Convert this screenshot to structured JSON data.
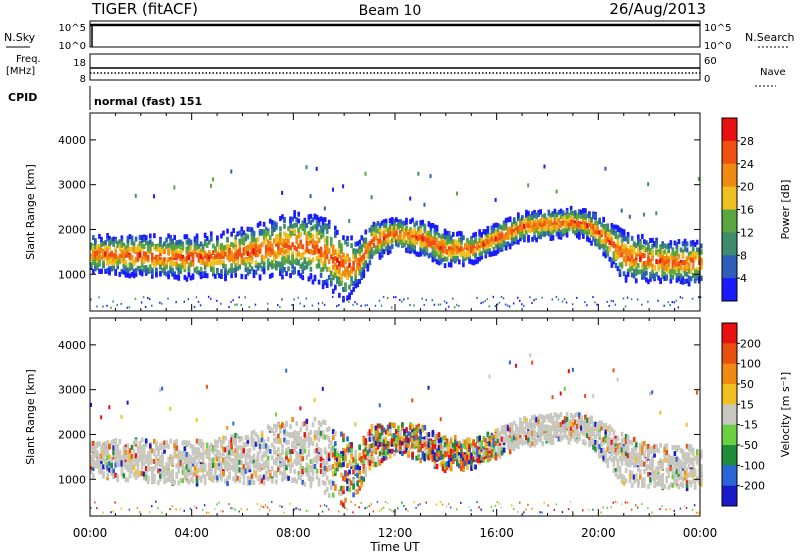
{
  "header": {
    "title": "TIGER (fitACF)",
    "beam": "Beam 10",
    "date": "26/Aug/2013"
  },
  "top_panels": {
    "nsky_label": "N.Sky",
    "nsky_ticks": [
      "10^5",
      "10^0"
    ],
    "nsearch_label": "N.Search",
    "nsearch_ticks": [
      "10^5",
      "10^0"
    ],
    "freq_label": "Freq.",
    "freq_unit": "[MHz]",
    "freq_ticks": [
      "18",
      "8"
    ],
    "nave_label": "Nave",
    "nave_ticks": [
      "60",
      "0"
    ],
    "cpid_label": "CPID",
    "cpid_value": "normal (fast) 151"
  },
  "colors": {
    "power": [
      "#1a1aff",
      "#2e5fb8",
      "#3e8c6b",
      "#5aa640",
      "#f0c020",
      "#f08a10",
      "#f05010",
      "#e81010"
    ],
    "velocity": [
      "#1a1ac8",
      "#2a66d8",
      "#1f8c3a",
      "#6ad040",
      "#c8c8c0",
      "#f0c020",
      "#f08a10",
      "#e85010",
      "#e81010"
    ]
  },
  "chart_data": [
    {
      "type": "heatmap",
      "title": "",
      "xlabel": "Time UT",
      "ylabel": "Slant Range [km]",
      "x_ticks": [
        "00:00",
        "04:00",
        "08:00",
        "12:00",
        "16:00",
        "20:00",
        "00:00"
      ],
      "y_ticks": [
        "1000",
        "2000",
        "3000",
        "4000"
      ],
      "xlim": [
        0,
        24
      ],
      "ylim": [
        180,
        4600
      ],
      "colorbar": {
        "label": "Power [dB]",
        "ticks": [
          "4",
          "8",
          "12",
          "16",
          "20",
          "24",
          "28"
        ],
        "range": [
          0,
          32
        ]
      },
      "profile": {
        "hours": [
          0,
          2,
          4,
          6,
          8,
          9,
          10,
          10.5,
          11,
          12,
          13,
          14,
          15,
          16,
          17,
          18,
          19,
          19.5,
          20,
          21,
          22,
          23,
          24
        ],
        "center_km": [
          1450,
          1400,
          1350,
          1450,
          1650,
          1550,
          1150,
          1200,
          1700,
          1900,
          1800,
          1550,
          1550,
          1800,
          2050,
          2100,
          2150,
          2100,
          1900,
          1400,
          1300,
          1250,
          1250
        ],
        "width_km": [
          250,
          300,
          300,
          350,
          450,
          500,
          500,
          300,
          300,
          200,
          250,
          250,
          200,
          200,
          200,
          200,
          200,
          200,
          250,
          350,
          300,
          300,
          300
        ]
      }
    },
    {
      "type": "heatmap",
      "title": "",
      "xlabel": "Time UT",
      "ylabel": "Slant Range [km]",
      "x_ticks": [
        "00:00",
        "04:00",
        "08:00",
        "12:00",
        "16:00",
        "20:00",
        "00:00"
      ],
      "y_ticks": [
        "1000",
        "2000",
        "3000",
        "4000"
      ],
      "xlim": [
        0,
        24
      ],
      "ylim": [
        180,
        4600
      ],
      "colorbar": {
        "label": "Velocity [m s⁻¹]",
        "ticks": [
          "200",
          "100",
          "50",
          "15",
          "-15",
          "-50",
          "-100",
          "-200"
        ],
        "range": [
          -250,
          250
        ]
      },
      "profile": {
        "hours": [
          0,
          2,
          4,
          6,
          8,
          9,
          10,
          10.5,
          11,
          12,
          13,
          14,
          15,
          16,
          17,
          18,
          19,
          19.5,
          20,
          21,
          22,
          23,
          24
        ],
        "center_km": [
          1450,
          1400,
          1350,
          1450,
          1650,
          1550,
          1150,
          1200,
          1700,
          1900,
          1800,
          1550,
          1550,
          1800,
          2050,
          2100,
          2150,
          2100,
          1900,
          1400,
          1300,
          1250,
          1250
        ],
        "width_km": [
          250,
          300,
          300,
          350,
          450,
          500,
          500,
          300,
          300,
          200,
          250,
          250,
          200,
          200,
          200,
          200,
          200,
          200,
          250,
          350,
          300,
          300,
          300
        ]
      }
    }
  ]
}
